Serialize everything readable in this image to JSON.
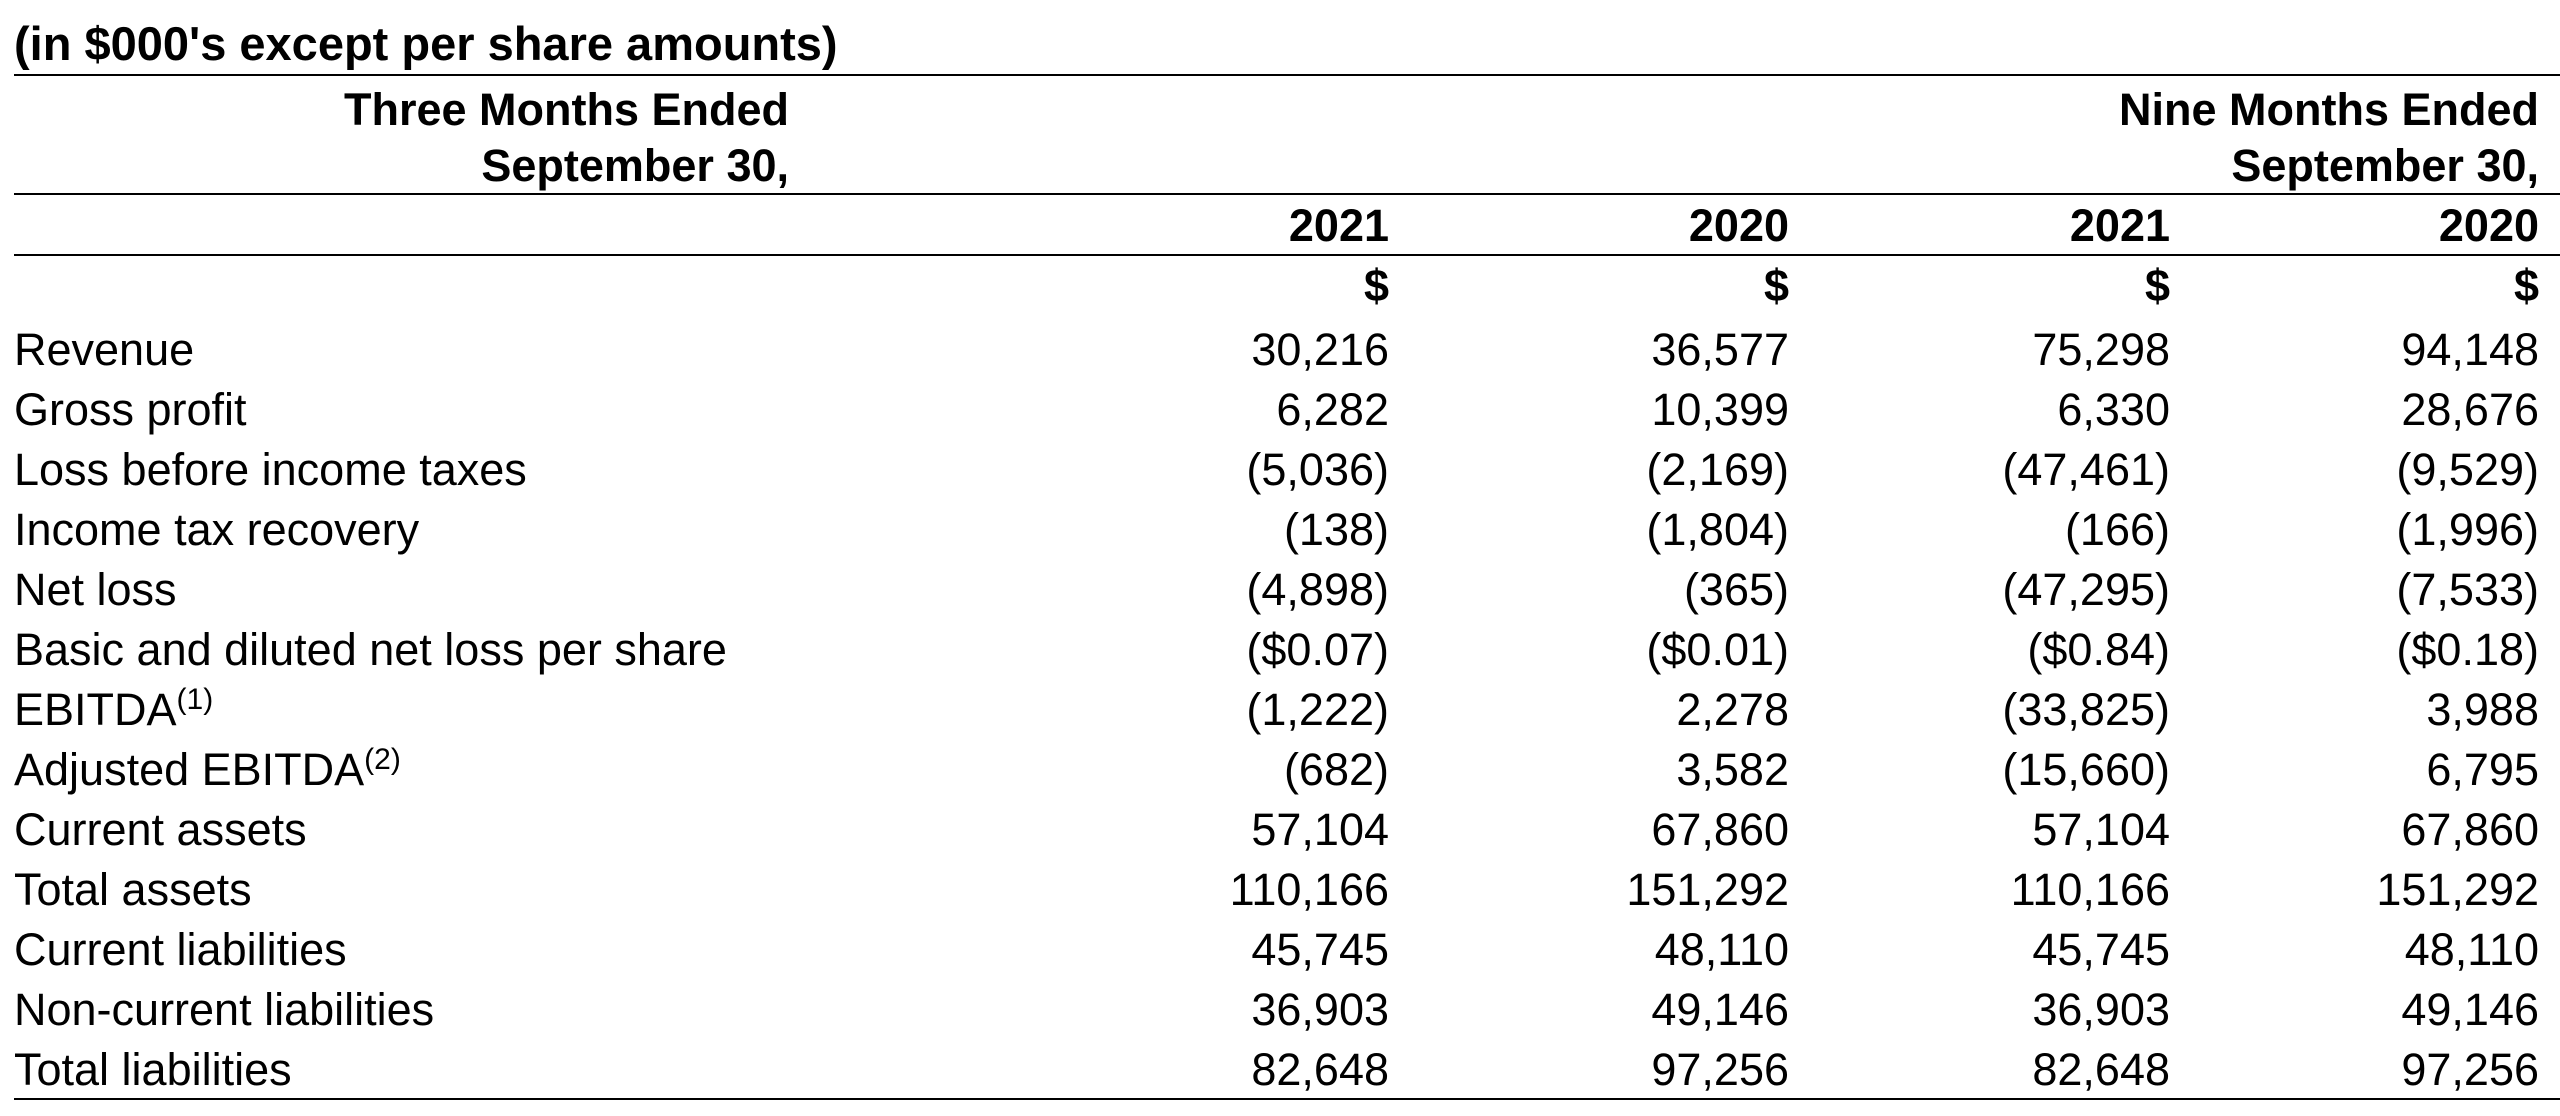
{
  "caption": "(in $000's except per share amounts)",
  "period_groups": [
    {
      "line1": "Three Months Ended",
      "line2": "September 30,"
    },
    {
      "line1": "Nine Months Ended",
      "line2": "September 30,"
    }
  ],
  "years": [
    "2021",
    "2020",
    "2021",
    "2020"
  ],
  "currency": [
    "$",
    "$",
    "$",
    "$"
  ],
  "rows": [
    {
      "label": "Revenue",
      "note": "",
      "values": [
        "30,216",
        "36,577",
        "75,298",
        "94,148"
      ]
    },
    {
      "label": "Gross profit",
      "note": "",
      "values": [
        "6,282",
        "10,399",
        "6,330",
        "28,676"
      ]
    },
    {
      "label": "Loss before income taxes",
      "note": "",
      "values": [
        "(5,036)",
        "(2,169)",
        "(47,461)",
        "(9,529)"
      ]
    },
    {
      "label": "Income tax recovery",
      "note": "",
      "values": [
        "(138)",
        "(1,804)",
        "(166)",
        "(1,996)"
      ]
    },
    {
      "label": "Net loss",
      "note": "",
      "values": [
        "(4,898)",
        "(365)",
        "(47,295)",
        "(7,533)"
      ]
    },
    {
      "label": "Basic and diluted net loss per share",
      "note": "",
      "values": [
        "($0.07)",
        "($0.01)",
        "($0.84)",
        "($0.18)"
      ]
    },
    {
      "label": "EBITDA",
      "note": "(1)",
      "values": [
        "(1,222)",
        "2,278",
        "(33,825)",
        "3,988"
      ]
    },
    {
      "label": "Adjusted EBITDA",
      "note": "(2)",
      "values": [
        "(682)",
        "3,582",
        "(15,660)",
        "6,795"
      ]
    },
    {
      "label": "Current assets",
      "note": "",
      "values": [
        "57,104",
        "67,860",
        "57,104",
        "67,860"
      ]
    },
    {
      "label": "Total assets",
      "note": "",
      "values": [
        "110,166",
        "151,292",
        "110,166",
        "151,292"
      ]
    },
    {
      "label": "Current liabilities",
      "note": "",
      "values": [
        "45,745",
        "48,110",
        "45,745",
        "48,110"
      ]
    },
    {
      "label": "Non-current liabilities",
      "note": "",
      "values": [
        "36,903",
        "49,146",
        "36,903",
        "49,146"
      ]
    },
    {
      "label": "Total liabilities",
      "note": "",
      "values": [
        "82,648",
        "97,256",
        "82,648",
        "97,256"
      ]
    }
  ]
}
